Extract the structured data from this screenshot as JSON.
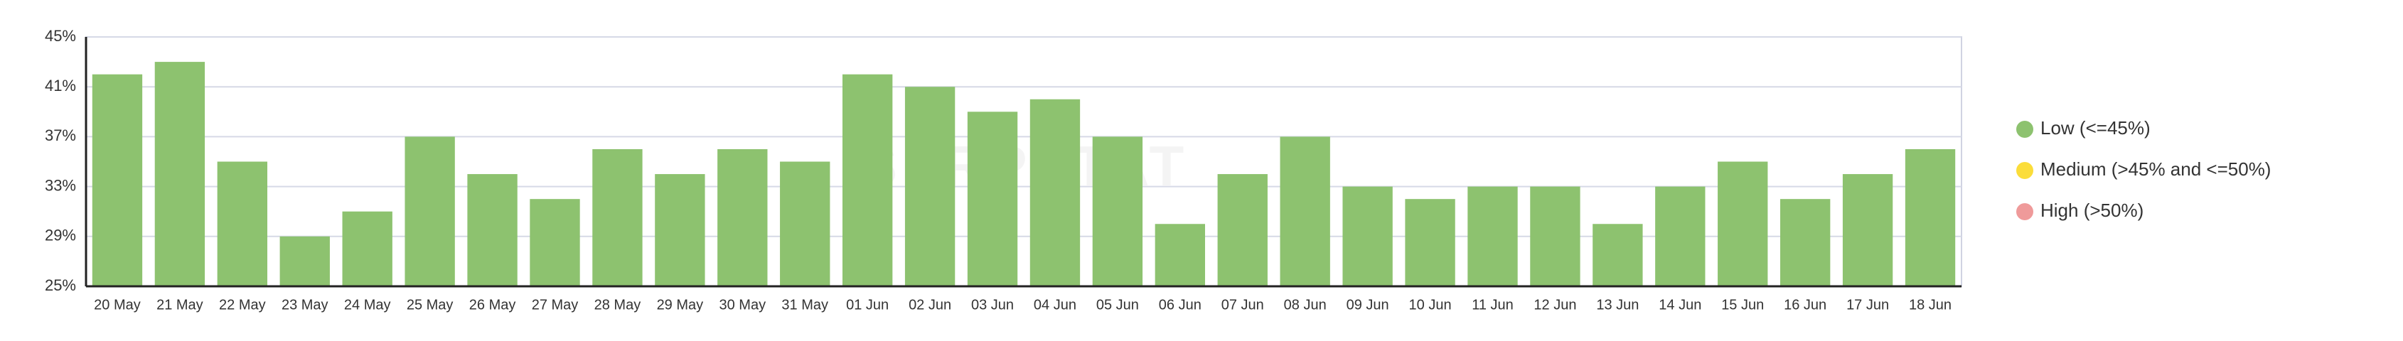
{
  "chart_data": {
    "type": "bar",
    "categories": [
      "20 May",
      "21 May",
      "22 May",
      "23 May",
      "24 May",
      "25 May",
      "26 May",
      "27 May",
      "28 May",
      "29 May",
      "30 May",
      "31 May",
      "01 Jun",
      "02 Jun",
      "03 Jun",
      "04 Jun",
      "05 Jun",
      "06 Jun",
      "07 Jun",
      "08 Jun",
      "09 Jun",
      "10 Jun",
      "11 Jun",
      "12 Jun",
      "13 Jun",
      "14 Jun",
      "15 Jun",
      "16 Jun",
      "17 Jun",
      "18 Jun"
    ],
    "values": [
      42,
      43,
      35,
      29,
      31,
      37,
      34,
      32,
      36,
      34,
      36,
      35,
      42,
      41,
      39,
      40,
      37,
      30,
      34,
      37,
      33,
      32,
      33,
      33,
      30,
      33,
      35,
      32,
      34,
      36
    ],
    "color": "#8dc26f",
    "ylim": [
      25,
      45
    ],
    "yticks": [
      {
        "value": 25,
        "label": "25%"
      },
      {
        "value": 29,
        "label": "29%"
      },
      {
        "value": 33,
        "label": "33%"
      },
      {
        "value": 37,
        "label": "37%"
      },
      {
        "value": 41,
        "label": "41%"
      },
      {
        "value": 45,
        "label": "45%"
      }
    ],
    "grid": true,
    "watermark": "SERPSTAT",
    "legend": [
      {
        "name": "Low (<=45%)",
        "color": "#8dc26f"
      },
      {
        "name": "Medium (>45% and <=50%)",
        "color": "#fbdd3a"
      },
      {
        "name": "High (>50%)",
        "color": "#ef9a9a"
      }
    ]
  }
}
